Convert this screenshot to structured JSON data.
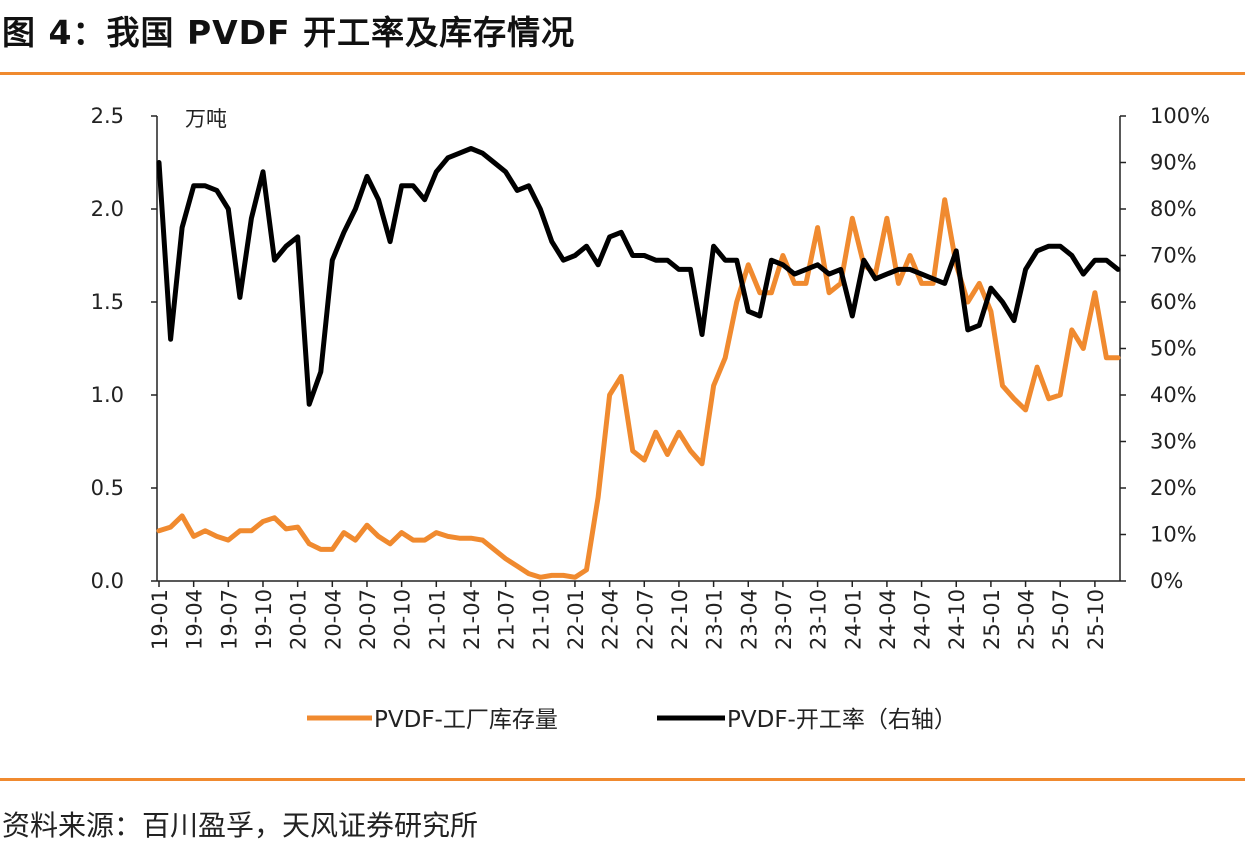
{
  "figure": {
    "title": "图 4：我国 PVDF 开工率及库存情况",
    "source": "资料来源：百川盈孚，天风证券研究所"
  },
  "chart_data": {
    "type": "line",
    "title": "",
    "x": [
      "19-01",
      "19-02",
      "19-03",
      "19-04",
      "19-05",
      "19-06",
      "19-07",
      "19-08",
      "19-09",
      "19-10",
      "19-11",
      "19-12",
      "20-01",
      "20-02",
      "20-03",
      "20-04",
      "20-05",
      "20-06",
      "20-07",
      "20-08",
      "20-09",
      "20-10",
      "20-11",
      "20-12",
      "21-01",
      "21-02",
      "21-03",
      "21-04",
      "21-05",
      "21-06",
      "21-07",
      "21-08",
      "21-09",
      "21-10",
      "21-11",
      "21-12",
      "22-01",
      "22-02",
      "22-03",
      "22-04",
      "22-05",
      "22-06",
      "22-07",
      "22-08",
      "22-09",
      "22-10",
      "22-11",
      "22-12",
      "23-01",
      "23-02",
      "23-03",
      "23-04",
      "23-05",
      "23-06",
      "23-07",
      "23-08",
      "23-09",
      "23-10",
      "23-11",
      "23-12",
      "24-01",
      "24-02",
      "24-03",
      "24-04",
      "24-05",
      "24-06",
      "24-07",
      "24-08",
      "24-09",
      "24-10",
      "24-11",
      "24-12",
      "25-01",
      "25-02",
      "25-03",
      "25-04",
      "25-05",
      "25-06",
      "25-07",
      "25-08",
      "25-09",
      "25-10",
      "25-11",
      "25-12"
    ],
    "x_tick_labels": [
      "19-01",
      "19-04",
      "19-07",
      "19-10",
      "20-01",
      "20-04",
      "20-07",
      "20-10",
      "21-01",
      "21-04",
      "21-07",
      "21-10",
      "22-01",
      "22-04",
      "22-07",
      "22-10",
      "23-01",
      "23-04",
      "23-07",
      "23-10",
      "24-01",
      "24-04",
      "24-07",
      "24-10",
      "25-01",
      "25-04",
      "25-07",
      "25-10"
    ],
    "left_axis": {
      "unit_label": "万吨",
      "ylim": [
        0,
        2.5
      ],
      "ticks": [
        "0.0",
        "0.5",
        "1.0",
        "1.5",
        "2.0",
        "2.5"
      ]
    },
    "right_axis": {
      "ylim": [
        0,
        100
      ],
      "ticks": [
        "0%",
        "10%",
        "20%",
        "30%",
        "40%",
        "50%",
        "60%",
        "70%",
        "80%",
        "90%",
        "100%"
      ]
    },
    "legend_position": "bottom",
    "series": [
      {
        "name": "PVDF-工厂库存量",
        "axis": "left",
        "color": "#f08a2f",
        "values": [
          0.27,
          0.29,
          0.35,
          0.24,
          0.27,
          0.24,
          0.22,
          0.27,
          0.27,
          0.32,
          0.34,
          0.28,
          0.29,
          0.2,
          0.17,
          0.17,
          0.26,
          0.22,
          0.3,
          0.24,
          0.2,
          0.26,
          0.22,
          0.22,
          0.26,
          0.24,
          0.23,
          0.23,
          0.22,
          0.17,
          0.12,
          0.08,
          0.04,
          0.02,
          0.03,
          0.03,
          0.02,
          0.06,
          0.45,
          1.0,
          1.1,
          0.7,
          0.65,
          0.8,
          0.68,
          0.8,
          0.7,
          0.63,
          1.05,
          1.2,
          1.5,
          1.7,
          1.55,
          1.55,
          1.75,
          1.6,
          1.6,
          1.9,
          1.55,
          1.6,
          1.95,
          1.7,
          1.65,
          1.95,
          1.6,
          1.75,
          1.6,
          1.6,
          2.05,
          1.7,
          1.5,
          1.6,
          1.45,
          1.05,
          0.98,
          0.92,
          1.15,
          0.98,
          1.0,
          1.35,
          1.25,
          1.55,
          1.2,
          1.2
        ]
      },
      {
        "name": "PVDF-开工率（右轴）",
        "axis": "right",
        "color": "#000000",
        "values": [
          90,
          52,
          76,
          85,
          85,
          84,
          80,
          61,
          78,
          88,
          69,
          72,
          74,
          38,
          45,
          69,
          75,
          80,
          87,
          82,
          73,
          85,
          85,
          82,
          88,
          91,
          92,
          93,
          92,
          90,
          88,
          84,
          85,
          80,
          73,
          69,
          70,
          72,
          68,
          74,
          75,
          70,
          70,
          69,
          69,
          67,
          67,
          53,
          72,
          69,
          69,
          58,
          57,
          69,
          68,
          66,
          67,
          68,
          66,
          67,
          57,
          69,
          65,
          66,
          67,
          67,
          66,
          65,
          64,
          71,
          54,
          55,
          63,
          60,
          56,
          67,
          71,
          72,
          72,
          70,
          66,
          69,
          69,
          67
        ]
      }
    ]
  }
}
